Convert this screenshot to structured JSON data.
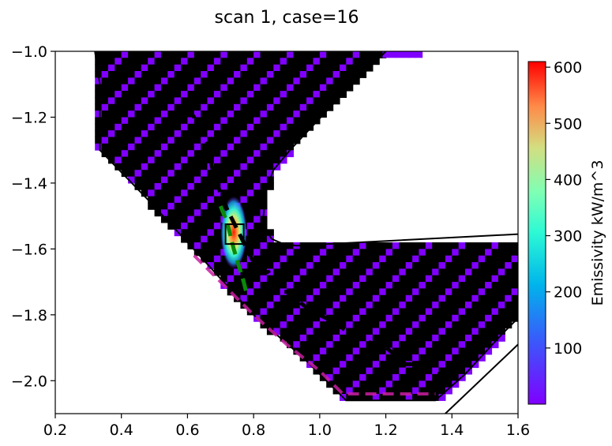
{
  "chart_data": {
    "type": "heatmap",
    "title": "scan 1, case=16",
    "xlabel": "",
    "ylabel": "",
    "xlim": [
      0.2,
      1.6
    ],
    "ylim": [
      -2.1,
      -1.0
    ],
    "x_ticks": [
      "0.2",
      "0.4",
      "0.6",
      "0.8",
      "1.0",
      "1.2",
      "1.4",
      "1.6"
    ],
    "y_ticks": [
      "−1.0",
      "−1.2",
      "−1.4",
      "−1.6",
      "−1.8",
      "−2.0"
    ],
    "grid": false,
    "colorbar": {
      "label": "Emissivity kW/m^3",
      "range": [
        0,
        610
      ],
      "ticks": [
        "100",
        "200",
        "300",
        "400",
        "500",
        "600"
      ],
      "colormap": "rainbow"
    },
    "emission_peak": {
      "x": 0.74,
      "y": -1.55,
      "value": 600
    },
    "box_marker": {
      "x0": 0.715,
      "x1": 0.77,
      "y0": -1.585,
      "y1": -1.525
    },
    "boundary_outer": [
      [
        0.32,
        -1.0
      ],
      [
        0.335,
        -1.1
      ],
      [
        0.335,
        -1.3
      ],
      [
        0.48,
        -1.45
      ],
      [
        0.6,
        -1.58
      ],
      [
        0.7,
        -1.69
      ],
      [
        0.8,
        -1.8
      ],
      [
        0.95,
        -1.93
      ],
      [
        1.08,
        -2.06
      ],
      [
        1.35,
        -2.06
      ],
      [
        1.44,
        -1.98
      ],
      [
        1.55,
        -1.86
      ],
      [
        1.6,
        -1.81
      ]
    ],
    "boundary_inner": [
      [
        1.2,
        -1.0
      ],
      [
        1.05,
        -1.15
      ],
      [
        0.91,
        -1.3
      ],
      [
        0.86,
        -1.36
      ],
      [
        0.835,
        -1.43
      ],
      [
        0.83,
        -1.5
      ],
      [
        0.835,
        -1.54
      ],
      [
        0.855,
        -1.57
      ],
      [
        0.89,
        -1.585
      ],
      [
        0.93,
        -1.59
      ],
      [
        1.6,
        -1.555
      ]
    ],
    "boundary_lower": [
      [
        1.38,
        -2.1
      ],
      [
        1.6,
        -1.89
      ]
    ],
    "black_dashed_line": [
      [
        0.6,
        -1.17
      ],
      [
        0.62,
        -1.2
      ],
      [
        0.66,
        -1.28
      ],
      [
        0.68,
        -1.38
      ],
      [
        0.72,
        -1.48
      ],
      [
        0.76,
        -1.56
      ],
      [
        0.8,
        -1.64
      ],
      [
        0.825,
        -1.67
      ],
      [
        0.845,
        -1.67
      ],
      [
        0.875,
        -1.73
      ],
      [
        0.9,
        -1.73
      ],
      [
        0.975,
        -1.79
      ],
      [
        1.02,
        -1.81
      ],
      [
        1.1,
        -1.86
      ],
      [
        1.165,
        -1.89
      ],
      [
        1.19,
        -1.89
      ],
      [
        1.26,
        -1.95
      ],
      [
        1.3,
        -1.95
      ],
      [
        1.4,
        -2.0
      ]
    ],
    "green_dashed_line": [
      [
        0.7,
        -1.47
      ],
      [
        0.72,
        -1.52
      ],
      [
        0.74,
        -1.6
      ],
      [
        0.755,
        -1.65
      ],
      [
        0.77,
        -1.7
      ],
      [
        0.78,
        -1.74
      ]
    ],
    "magenta_dashed_line": [
      [
        0.62,
        -1.62
      ],
      [
        0.7,
        -1.7
      ],
      [
        0.8,
        -1.8
      ],
      [
        0.9,
        -1.89
      ],
      [
        1.0,
        -1.97
      ],
      [
        1.07,
        -2.04
      ],
      [
        1.35,
        -2.04
      ]
    ]
  }
}
